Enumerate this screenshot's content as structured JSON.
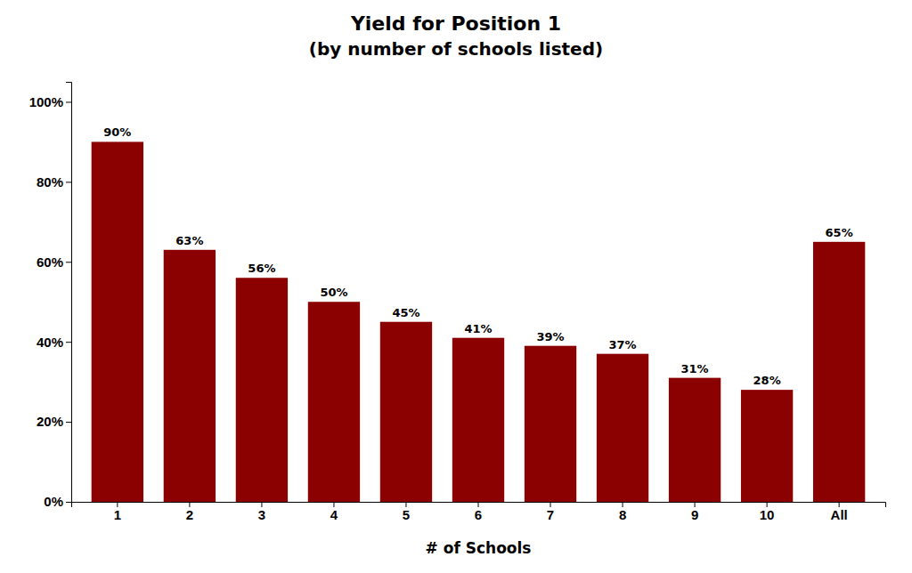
{
  "chart_data": {
    "type": "bar",
    "title": "Yield for Position 1",
    "subtitle": "(by number of schools listed)",
    "x_label": "# of Schools",
    "categories": [
      "1",
      "2",
      "3",
      "4",
      "5",
      "6",
      "7",
      "8",
      "9",
      "10",
      "All"
    ],
    "values": [
      0.9,
      0.63,
      0.56,
      0.5,
      0.45,
      0.41,
      0.39,
      0.37,
      0.31,
      0.28,
      0.65
    ],
    "value_labels": [
      "90%",
      "63%",
      "56%",
      "50%",
      "45%",
      "41%",
      "39%",
      "37%",
      "31%",
      "28%",
      "65%"
    ],
    "data_labels": true,
    "color": "#8B0000",
    "ylim": [
      0,
      1.05
    ],
    "yticks": [
      {
        "value": 0.0,
        "label": "0%"
      },
      {
        "value": 0.2,
        "label": "20%"
      },
      {
        "value": 0.4,
        "label": "40%"
      },
      {
        "value": 0.6,
        "label": "60%"
      },
      {
        "value": 0.8,
        "label": "80%"
      },
      {
        "value": 1.0,
        "label": "100%"
      }
    ],
    "grid": false
  }
}
